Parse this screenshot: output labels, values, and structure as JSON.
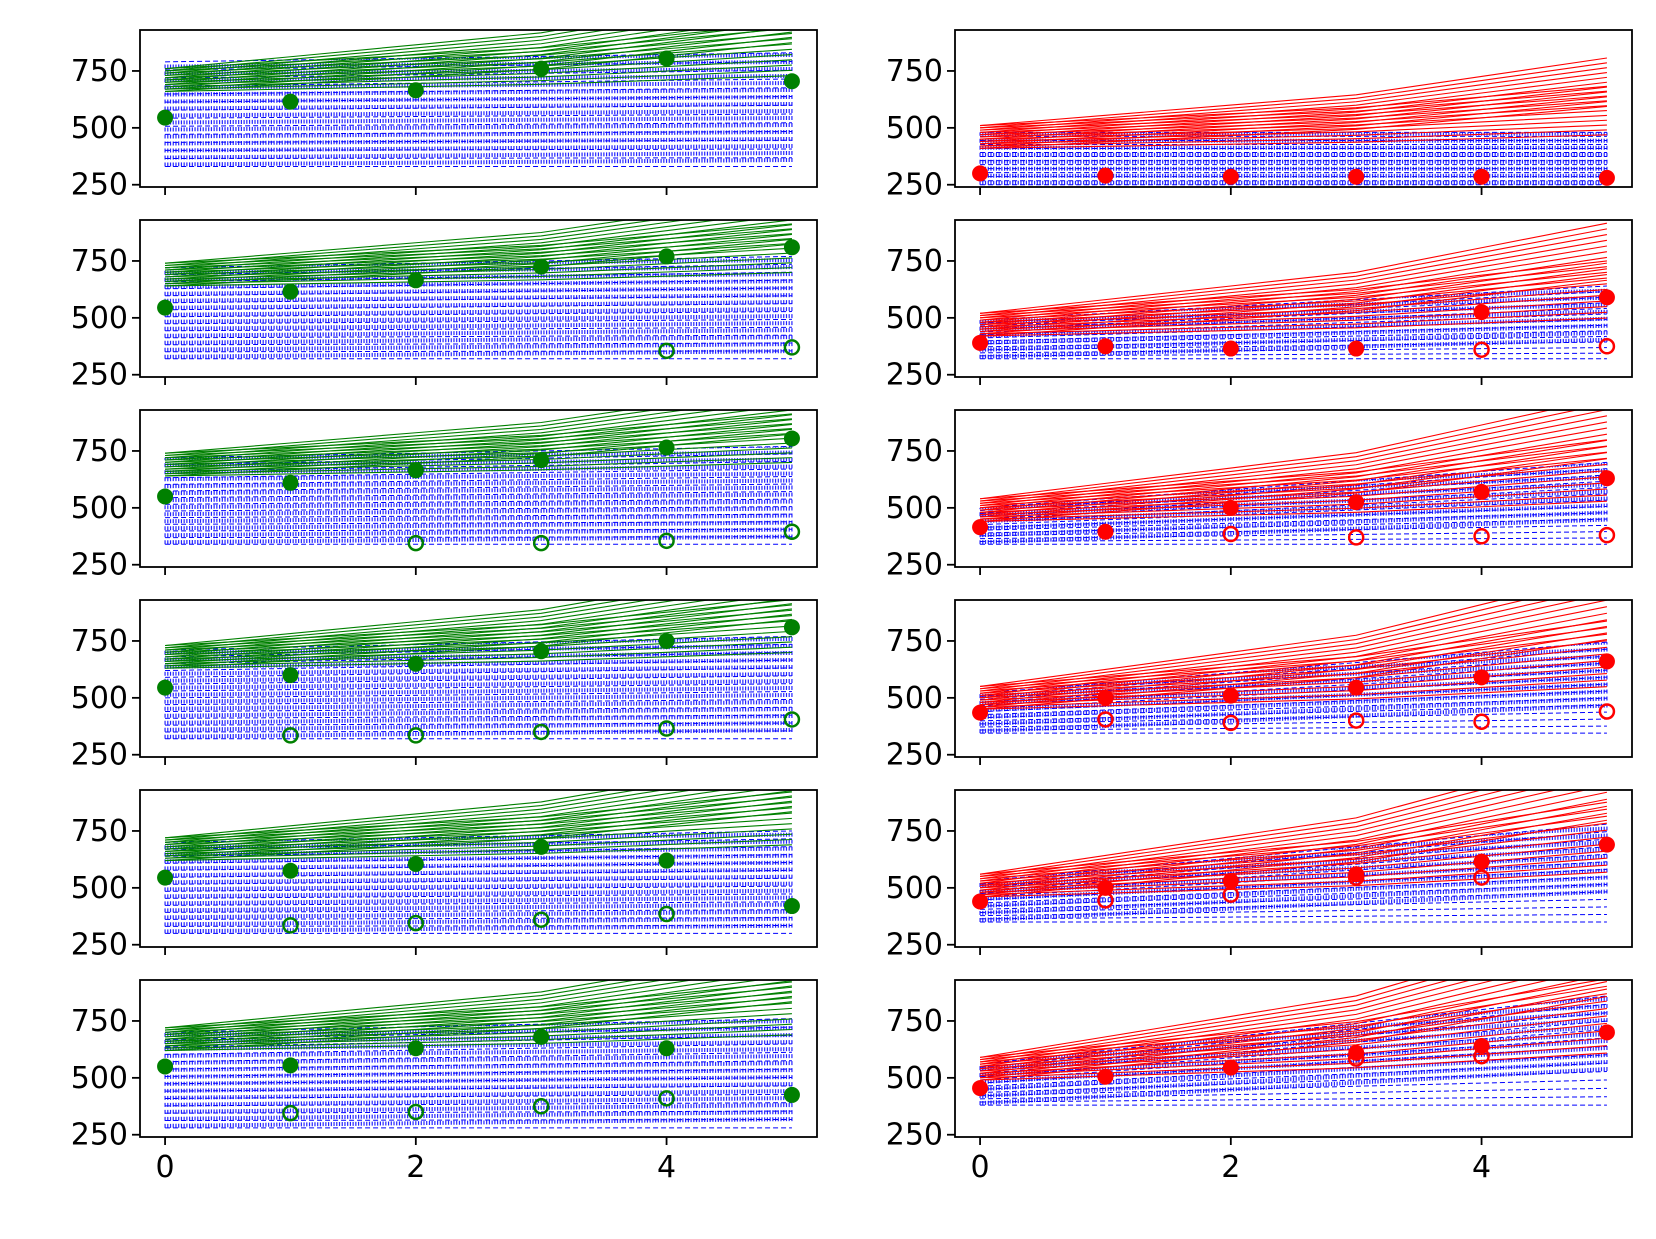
{
  "chart_data": {
    "type": "line",
    "layout": "6 rows x 2 columns, shared x axis per column",
    "x_ticks": [
      0,
      2,
      4
    ],
    "y_ticks": [
      250,
      500,
      750
    ],
    "xlim": [
      -0.2,
      5.2
    ],
    "ylim": [
      240,
      930
    ],
    "colors": {
      "left_lines": "#008000",
      "right_lines": "#ff0000",
      "simulated": "#0000ff",
      "frame": "#000000",
      "background": "#ffffff"
    },
    "panels": [
      {
        "row": 0,
        "col": 0,
        "color": "#008000",
        "filled": [
          [
            0,
            545
          ],
          [
            1,
            615
          ],
          [
            2,
            665
          ],
          [
            3,
            760
          ],
          [
            4,
            805
          ],
          [
            5,
            705
          ]
        ],
        "open": [],
        "band": {
          "low": 330,
          "high": 790,
          "slope": 8
        },
        "fan": {
          "base": 720,
          "slope": 35
        }
      },
      {
        "row": 0,
        "col": 1,
        "color": "#ff0000",
        "filled": [
          [
            0,
            300
          ],
          [
            1,
            290
          ],
          [
            2,
            285
          ],
          [
            3,
            285
          ],
          [
            4,
            285
          ],
          [
            5,
            280
          ]
        ],
        "open": [],
        "band": {
          "low": 250,
          "high": 480,
          "slope": 0
        },
        "fan": {
          "base": 470,
          "slope": 30
        }
      },
      {
        "row": 1,
        "col": 0,
        "color": "#008000",
        "filled": [
          [
            0,
            545
          ],
          [
            1,
            615
          ],
          [
            2,
            665
          ],
          [
            3,
            725
          ],
          [
            4,
            770
          ],
          [
            5,
            810
          ]
        ],
        "open": [
          [
            4,
            355
          ],
          [
            5,
            370
          ]
        ],
        "band": {
          "low": 320,
          "high": 720,
          "slope": 10
        },
        "fan": {
          "base": 700,
          "slope": 30
        }
      },
      {
        "row": 1,
        "col": 1,
        "color": "#ff0000",
        "filled": [
          [
            0,
            390
          ],
          [
            1,
            375
          ],
          [
            2,
            365
          ],
          [
            3,
            365
          ],
          [
            4,
            525
          ],
          [
            5,
            590
          ]
        ],
        "open": [
          [
            4,
            360
          ],
          [
            5,
            375
          ]
        ],
        "band": {
          "low": 320,
          "high": 490,
          "slope": 30
        },
        "fan": {
          "base": 480,
          "slope": 40
        }
      },
      {
        "row": 2,
        "col": 0,
        "color": "#008000",
        "filled": [
          [
            0,
            550
          ],
          [
            1,
            610
          ],
          [
            2,
            665
          ],
          [
            3,
            710
          ],
          [
            4,
            765
          ],
          [
            5,
            805
          ]
        ],
        "open": [
          [
            2,
            345
          ],
          [
            3,
            345
          ],
          [
            4,
            355
          ],
          [
            5,
            395
          ]
        ],
        "band": {
          "low": 340,
          "high": 720,
          "slope": 10
        },
        "fan": {
          "base": 700,
          "slope": 30
        }
      },
      {
        "row": 2,
        "col": 1,
        "color": "#ff0000",
        "filled": [
          [
            0,
            415
          ],
          [
            1,
            395
          ],
          [
            2,
            500
          ],
          [
            3,
            525
          ],
          [
            4,
            570
          ],
          [
            5,
            630
          ]
        ],
        "open": [
          [
            2,
            385
          ],
          [
            3,
            370
          ],
          [
            4,
            375
          ],
          [
            5,
            380
          ]
        ],
        "band": {
          "low": 340,
          "high": 500,
          "slope": 40
        },
        "fan": {
          "base": 500,
          "slope": 45
        }
      },
      {
        "row": 3,
        "col": 0,
        "color": "#008000",
        "filled": [
          [
            0,
            545
          ],
          [
            1,
            600
          ],
          [
            2,
            650
          ],
          [
            3,
            705
          ],
          [
            4,
            750
          ],
          [
            5,
            810
          ]
        ],
        "open": [
          [
            1,
            335
          ],
          [
            2,
            335
          ],
          [
            3,
            350
          ],
          [
            4,
            365
          ],
          [
            5,
            405
          ]
        ],
        "band": {
          "low": 320,
          "high": 710,
          "slope": 12
        },
        "fan": {
          "base": 690,
          "slope": 35
        }
      },
      {
        "row": 3,
        "col": 1,
        "color": "#ff0000",
        "filled": [
          [
            0,
            435
          ],
          [
            1,
            500
          ],
          [
            2,
            510
          ],
          [
            3,
            545
          ],
          [
            4,
            590
          ],
          [
            5,
            660
          ]
        ],
        "open": [
          [
            1,
            405
          ],
          [
            2,
            390
          ],
          [
            3,
            400
          ],
          [
            4,
            395
          ],
          [
            5,
            440
          ]
        ],
        "band": {
          "low": 345,
          "high": 520,
          "slope": 45
        },
        "fan": {
          "base": 510,
          "slope": 50
        }
      },
      {
        "row": 4,
        "col": 0,
        "color": "#008000",
        "filled": [
          [
            0,
            545
          ],
          [
            1,
            575
          ],
          [
            2,
            605
          ],
          [
            3,
            680
          ],
          [
            4,
            620
          ],
          [
            5,
            420
          ]
        ],
        "open": [
          [
            1,
            335
          ],
          [
            2,
            345
          ],
          [
            3,
            360
          ],
          [
            4,
            385
          ]
        ],
        "band": {
          "low": 300,
          "high": 700,
          "slope": 10
        },
        "fan": {
          "base": 680,
          "slope": 35
        }
      },
      {
        "row": 4,
        "col": 1,
        "color": "#ff0000",
        "filled": [
          [
            0,
            440
          ],
          [
            1,
            500
          ],
          [
            2,
            530
          ],
          [
            3,
            560
          ],
          [
            4,
            615
          ],
          [
            5,
            690
          ]
        ],
        "open": [
          [
            1,
            445
          ],
          [
            2,
            470
          ],
          [
            3,
            545
          ],
          [
            4,
            545
          ]
        ],
        "band": {
          "low": 350,
          "high": 530,
          "slope": 50
        },
        "fan": {
          "base": 520,
          "slope": 55
        }
      },
      {
        "row": 5,
        "col": 0,
        "color": "#008000",
        "filled": [
          [
            0,
            550
          ],
          [
            1,
            555
          ],
          [
            2,
            630
          ],
          [
            3,
            680
          ],
          [
            4,
            630
          ],
          [
            5,
            425
          ]
        ],
        "open": [
          [
            1,
            345
          ],
          [
            2,
            350
          ],
          [
            3,
            375
          ],
          [
            4,
            410
          ]
        ],
        "band": {
          "low": 280,
          "high": 700,
          "slope": 12
        },
        "fan": {
          "base": 680,
          "slope": 35
        }
      },
      {
        "row": 5,
        "col": 1,
        "color": "#ff0000",
        "filled": [
          [
            0,
            455
          ],
          [
            1,
            505
          ],
          [
            2,
            545
          ],
          [
            3,
            610
          ],
          [
            4,
            640
          ],
          [
            5,
            700
          ]
        ],
        "open": [
          [
            3,
            585
          ],
          [
            4,
            595
          ]
        ],
        "band": {
          "low": 380,
          "high": 560,
          "slope": 60
        },
        "fan": {
          "base": 550,
          "slope": 60
        }
      }
    ]
  }
}
